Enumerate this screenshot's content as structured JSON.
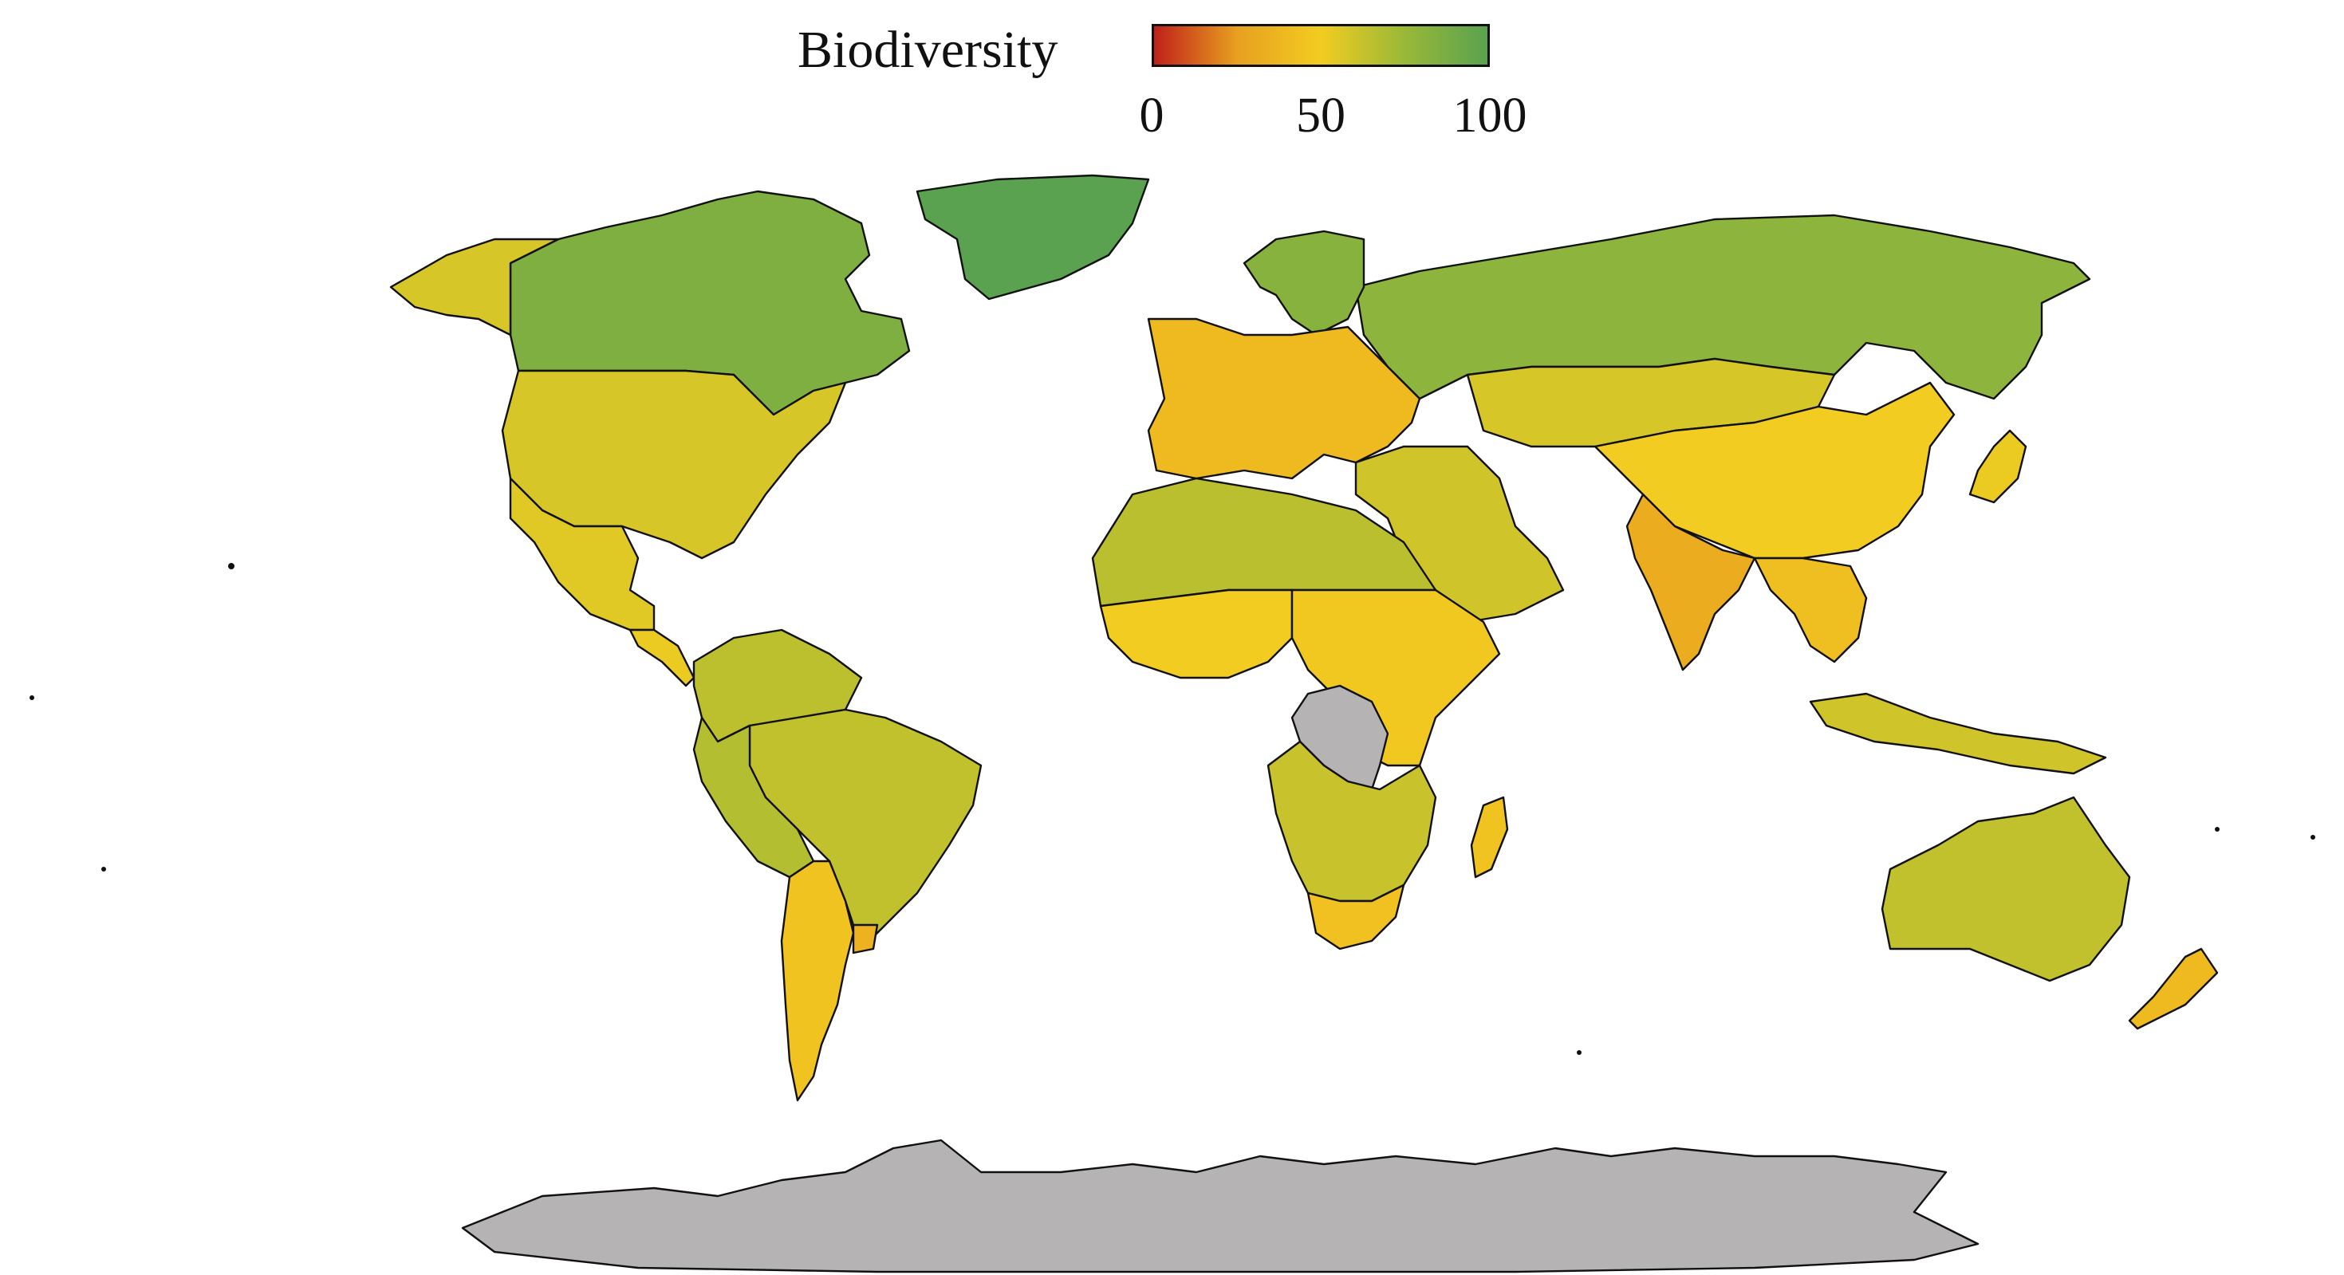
{
  "legend": {
    "title": "Biodiversity",
    "ticks": [
      "0",
      "50",
      "100"
    ],
    "tick_values": [
      0,
      50,
      100
    ],
    "colorscale": [
      "#c0201a",
      "#e8a020",
      "#f2cc20",
      "#9ab838",
      "#5aa24f"
    ]
  },
  "colors": {
    "na_fill": "#b5b3b3",
    "border": "#111111",
    "background": "#ffffff"
  },
  "regions": [
    {
      "name": "Canada",
      "value": 85
    },
    {
      "name": "Alaska",
      "value": 58
    },
    {
      "name": "Greenland",
      "value": 100
    },
    {
      "name": "United States",
      "value": 58
    },
    {
      "name": "Mexico",
      "value": 55
    },
    {
      "name": "Central America",
      "value": 52
    },
    {
      "name": "Colombia / Venezuela",
      "value": 65
    },
    {
      "name": "Brazil",
      "value": 64
    },
    {
      "name": "Peru / Bolivia",
      "value": 68
    },
    {
      "name": "Argentina",
      "value": 45
    },
    {
      "name": "Uruguay",
      "value": 35
    },
    {
      "name": "Russia",
      "value": 80
    },
    {
      "name": "Scandinavia",
      "value": 82
    },
    {
      "name": "Europe",
      "value": 40
    },
    {
      "name": "Turkey / Middle East",
      "value": 60
    },
    {
      "name": "Kazakhstan / Mongolia",
      "value": 58
    },
    {
      "name": "China",
      "value": 50
    },
    {
      "name": "India",
      "value": 32
    },
    {
      "name": "Southeast Asia",
      "value": 42
    },
    {
      "name": "Indonesia",
      "value": 60
    },
    {
      "name": "Japan",
      "value": 52
    },
    {
      "name": "North Africa",
      "value": 66
    },
    {
      "name": "West Africa",
      "value": 50
    },
    {
      "name": "East Africa",
      "value": 48
    },
    {
      "name": "DR Congo",
      "value": null
    },
    {
      "name": "Southern Africa",
      "value": 62
    },
    {
      "name": "South Africa",
      "value": 44
    },
    {
      "name": "Madagascar",
      "value": 45
    },
    {
      "name": "Australia",
      "value": 64
    },
    {
      "name": "New Zealand",
      "value": 40
    },
    {
      "name": "Antarctica",
      "value": null
    }
  ]
}
